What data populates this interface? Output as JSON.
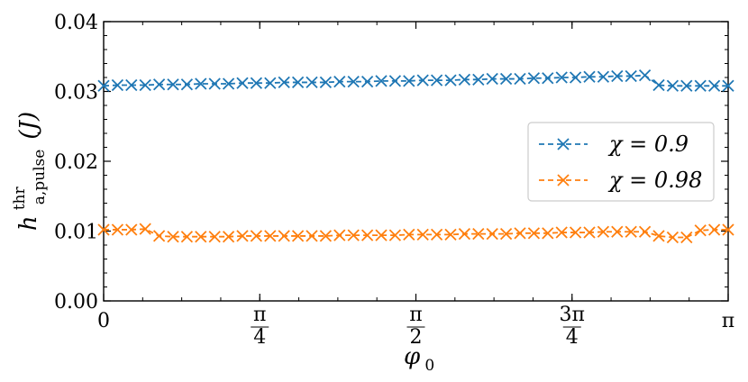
{
  "chart_data": {
    "type": "line",
    "title": "",
    "xlabel": {
      "base": "φ",
      "sub": "0"
    },
    "ylabel": {
      "base": "h",
      "sup": "thr",
      "sub": "a,pulse",
      "unit": "(J)"
    },
    "xlim": [
      0,
      3.14159265
    ],
    "ylim": [
      0,
      0.04
    ],
    "x_ticks": [
      {
        "value": 0,
        "num": "0",
        "den": ""
      },
      {
        "value": 0.785398,
        "num": "π",
        "den": "4"
      },
      {
        "value": 1.570796,
        "num": "π",
        "den": "2"
      },
      {
        "value": 2.356194,
        "num": "3π",
        "den": "4"
      },
      {
        "value": 3.141593,
        "num": "π",
        "den": ""
      }
    ],
    "y_ticks": [
      "0.00",
      "0.01",
      "0.02",
      "0.03",
      "0.04"
    ],
    "legend_position": "center-right",
    "grid": false,
    "x": [
      0.0,
      0.0698,
      0.1396,
      0.2094,
      0.2793,
      0.3491,
      0.4189,
      0.4887,
      0.5585,
      0.6283,
      0.6981,
      0.7679,
      0.8378,
      0.9076,
      0.9774,
      1.0472,
      1.117,
      1.1868,
      1.2566,
      1.3265,
      1.3963,
      1.4661,
      1.5359,
      1.6057,
      1.6755,
      1.7453,
      1.8151,
      1.885,
      1.9548,
      2.0246,
      2.0944,
      2.1642,
      2.234,
      2.3038,
      2.3736,
      2.4435,
      2.5133,
      2.5831,
      2.6529,
      2.7227,
      2.7925,
      2.8623,
      2.9322,
      3.002,
      3.0718,
      3.1416
    ],
    "series": [
      {
        "name": "χ = 0.9",
        "color": "#1f77b4",
        "values": [
          0.0308,
          0.0309,
          0.0309,
          0.0309,
          0.031,
          0.031,
          0.031,
          0.0311,
          0.0311,
          0.0311,
          0.0312,
          0.0312,
          0.0312,
          0.0313,
          0.0313,
          0.0313,
          0.0313,
          0.0314,
          0.0314,
          0.0314,
          0.0315,
          0.0315,
          0.0315,
          0.0316,
          0.0316,
          0.0316,
          0.0317,
          0.0317,
          0.0318,
          0.0318,
          0.0318,
          0.0319,
          0.0319,
          0.032,
          0.032,
          0.0321,
          0.0321,
          0.0322,
          0.0322,
          0.0323,
          0.0309,
          0.0308,
          0.0308,
          0.0308,
          0.0308,
          0.0308
        ]
      },
      {
        "name": "χ = 0.98",
        "color": "#ff7f0e",
        "values": [
          0.0102,
          0.0102,
          0.0102,
          0.0103,
          0.0093,
          0.0092,
          0.0092,
          0.0092,
          0.0092,
          0.0092,
          0.0093,
          0.0093,
          0.0093,
          0.0093,
          0.0093,
          0.0093,
          0.0093,
          0.0094,
          0.0094,
          0.0094,
          0.0094,
          0.0094,
          0.0095,
          0.0095,
          0.0095,
          0.0095,
          0.0096,
          0.0096,
          0.0096,
          0.0096,
          0.0097,
          0.0097,
          0.0097,
          0.0098,
          0.0098,
          0.0098,
          0.0099,
          0.0099,
          0.0099,
          0.0099,
          0.0093,
          0.0091,
          0.0091,
          0.0101,
          0.0102,
          0.0102
        ]
      }
    ]
  }
}
